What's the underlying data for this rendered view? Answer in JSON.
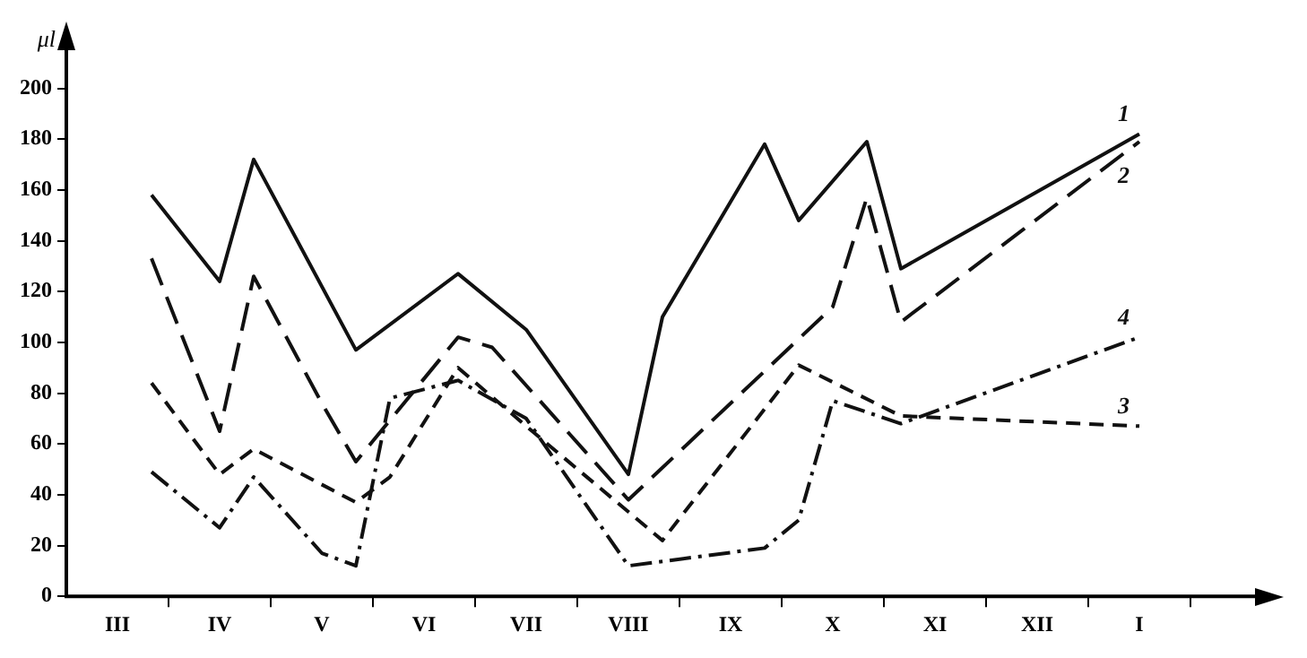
{
  "chart_data": {
    "type": "line",
    "ylabel": "μl",
    "ylim": [
      0,
      215
    ],
    "categories": [
      null,
      "III",
      null,
      null,
      "IV",
      null,
      null,
      "V",
      null,
      null,
      "VI",
      null,
      null,
      "VII",
      null,
      null,
      "VIII",
      null,
      null,
      "IX",
      null,
      null,
      "X",
      null,
      null,
      "XI",
      null,
      null,
      "XII",
      null,
      null,
      "I",
      null,
      null,
      null
    ],
    "yticks": [
      0,
      20,
      40,
      60,
      80,
      100,
      120,
      140,
      160,
      180,
      200
    ],
    "grid": false,
    "legend": false,
    "marker": "none",
    "series": [
      {
        "name": "1",
        "color": "#111111",
        "line_style": "solid",
        "values": [
          null,
          null,
          158,
          null,
          124,
          172,
          null,
          null,
          97,
          null,
          null,
          127,
          null,
          105,
          null,
          null,
          48,
          110,
          null,
          null,
          178,
          148,
          null,
          179,
          129,
          null,
          null,
          null,
          null,
          null,
          null,
          182,
          null,
          null,
          null
        ]
      },
      {
        "name": "2",
        "color": "#111111",
        "line_style": "dashed",
        "values": [
          null,
          null,
          133,
          null,
          65,
          126,
          null,
          76,
          53,
          null,
          null,
          102,
          98,
          null,
          null,
          null,
          38,
          null,
          null,
          null,
          null,
          null,
          114,
          157,
          108,
          null,
          null,
          null,
          null,
          null,
          null,
          179,
          null,
          null,
          null
        ]
      },
      {
        "name": "3",
        "color": "#111111",
        "line_style": "dashed",
        "values": [
          null,
          null,
          84,
          null,
          48,
          58,
          null,
          null,
          37,
          47,
          null,
          90,
          null,
          67,
          null,
          null,
          null,
          22,
          null,
          null,
          null,
          91,
          null,
          null,
          71,
          null,
          null,
          null,
          null,
          null,
          null,
          67,
          null,
          null,
          null
        ]
      },
      {
        "name": "4",
        "color": "#111111",
        "line_style": "dotted",
        "values": [
          null,
          null,
          49,
          null,
          27,
          47,
          null,
          17,
          12,
          78,
          null,
          85,
          null,
          70,
          null,
          null,
          12,
          null,
          null,
          null,
          19,
          30,
          77,
          null,
          68,
          null,
          null,
          null,
          null,
          null,
          null,
          102,
          null,
          null,
          null
        ]
      }
    ]
  }
}
